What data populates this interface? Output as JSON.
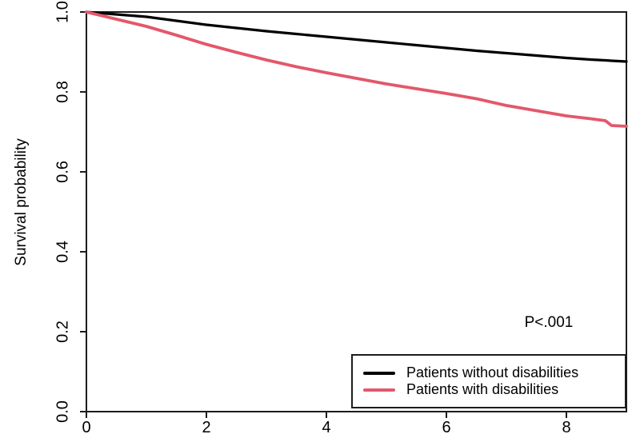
{
  "figure": {
    "background": "#ffffff",
    "axis_color": "#1c1c1c",
    "text_color": "#000000"
  },
  "legend": {
    "entries": [
      {
        "label": "Patients without disabilities",
        "color": "#000000"
      },
      {
        "label": "Patients with disabilities",
        "color": "#e2586b"
      }
    ]
  },
  "chart_data": {
    "type": "line",
    "subtype": "kaplan-meier-survival",
    "title": "",
    "xlabel": "",
    "ylabel": "Survival probability",
    "annotation": "P<.001",
    "grid": false,
    "legend_position": "bottom-right",
    "xlim": [
      0,
      9
    ],
    "ylim": [
      0.0,
      1.0
    ],
    "xticks": [
      0,
      2,
      4,
      6,
      8
    ],
    "xtick_labels": [
      "0",
      "2",
      "4",
      "6",
      "8"
    ],
    "yticks": [
      0.0,
      0.2,
      0.4,
      0.6,
      0.8,
      1.0
    ],
    "ytick_labels": [
      "0.0",
      "0.2",
      "0.4",
      "0.6",
      "0.8",
      "1.0"
    ],
    "x": [
      0,
      0.5,
      1,
      1.5,
      2,
      2.5,
      3,
      3.5,
      4,
      4.5,
      5,
      5.5,
      6,
      6.5,
      7,
      7.5,
      8,
      8.4,
      8.65,
      8.75,
      9
    ],
    "series": [
      {
        "name": "Patients without disabilities",
        "color": "#000000",
        "values": [
          1.0,
          0.994,
          0.988,
          0.978,
          0.968,
          0.96,
          0.952,
          0.945,
          0.938,
          0.931,
          0.924,
          0.917,
          0.91,
          0.903,
          0.897,
          0.891,
          0.885,
          0.881,
          0.879,
          0.878,
          0.876
        ]
      },
      {
        "name": "Patients with disabilities",
        "color": "#e2586b",
        "values": [
          1.0,
          0.982,
          0.964,
          0.942,
          0.919,
          0.899,
          0.88,
          0.863,
          0.848,
          0.834,
          0.82,
          0.808,
          0.796,
          0.783,
          0.766,
          0.753,
          0.74,
          0.733,
          0.728,
          0.716,
          0.714
        ]
      }
    ]
  }
}
